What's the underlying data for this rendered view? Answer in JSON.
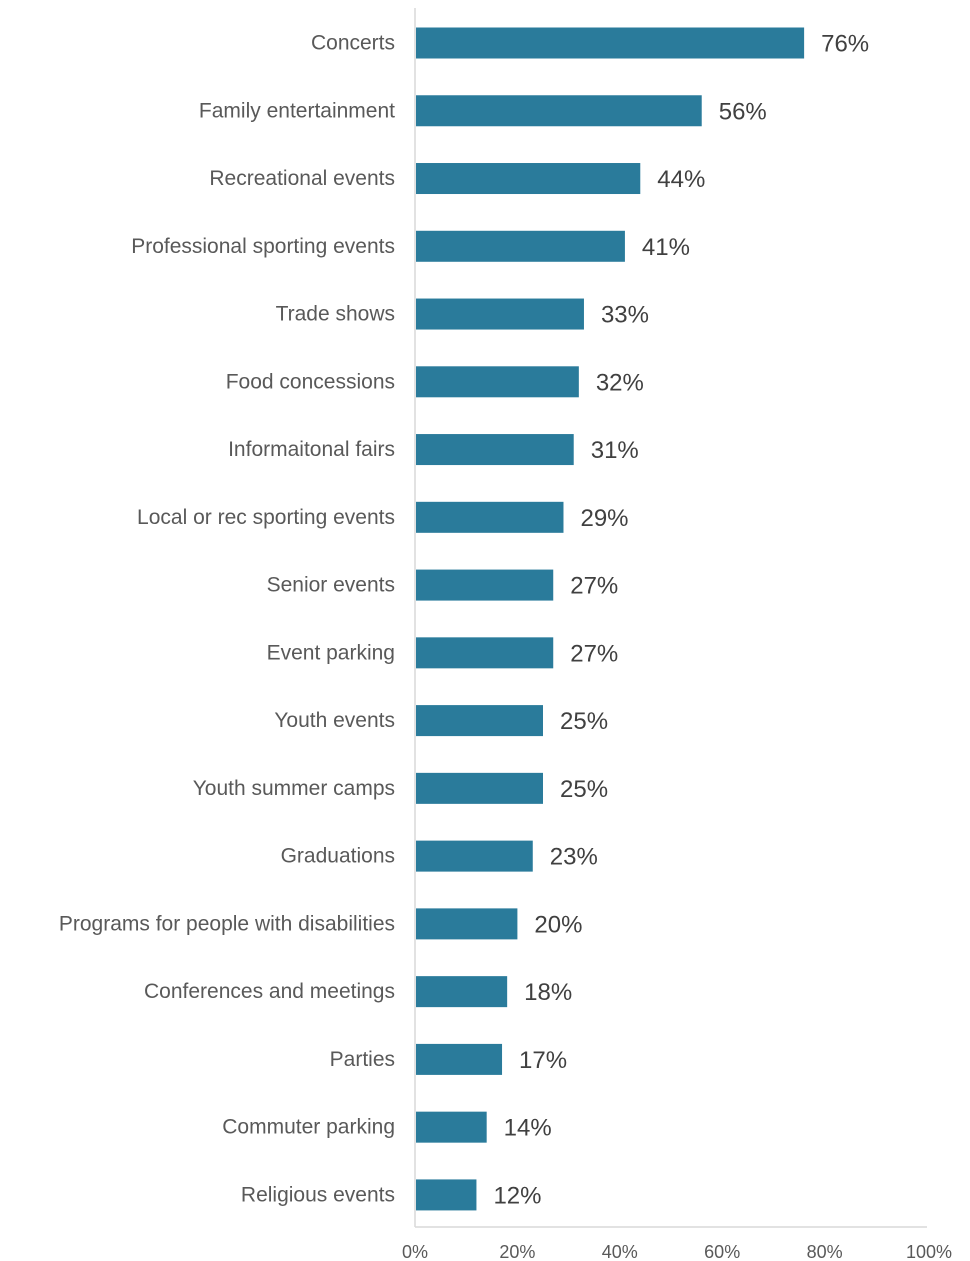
{
  "chart_data": {
    "type": "bar",
    "orientation": "horizontal",
    "categories": [
      "Concerts",
      "Family entertainment",
      "Recreational events",
      "Professional sporting events",
      "Trade shows",
      "Food concessions",
      "Informaitonal fairs",
      "Local or rec sporting events",
      "Senior events",
      "Event parking",
      "Youth events",
      "Youth summer camps",
      "Graduations",
      "Programs for people with disabilities",
      "Conferences and meetings",
      "Parties",
      "Commuter parking",
      "Religious events"
    ],
    "values": [
      76,
      56,
      44,
      41,
      33,
      32,
      31,
      29,
      27,
      27,
      25,
      25,
      23,
      20,
      18,
      17,
      14,
      12
    ],
    "value_labels": [
      "76%",
      "56%",
      "44%",
      "41%",
      "33%",
      "32%",
      "31%",
      "29%",
      "27%",
      "27%",
      "25%",
      "25%",
      "23%",
      "20%",
      "18%",
      "17%",
      "14%",
      "12%"
    ],
    "xlim": [
      0,
      100
    ],
    "x_ticks": [
      0,
      20,
      40,
      60,
      80,
      100
    ],
    "x_tick_labels": [
      "0%",
      "20%",
      "40%",
      "60%",
      "80%",
      "100%"
    ],
    "title": "",
    "xlabel": "",
    "ylabel": "",
    "grid": false,
    "legend": "none",
    "bar_color": "#2a7b9b",
    "axis_color": "#d9d9d9"
  }
}
